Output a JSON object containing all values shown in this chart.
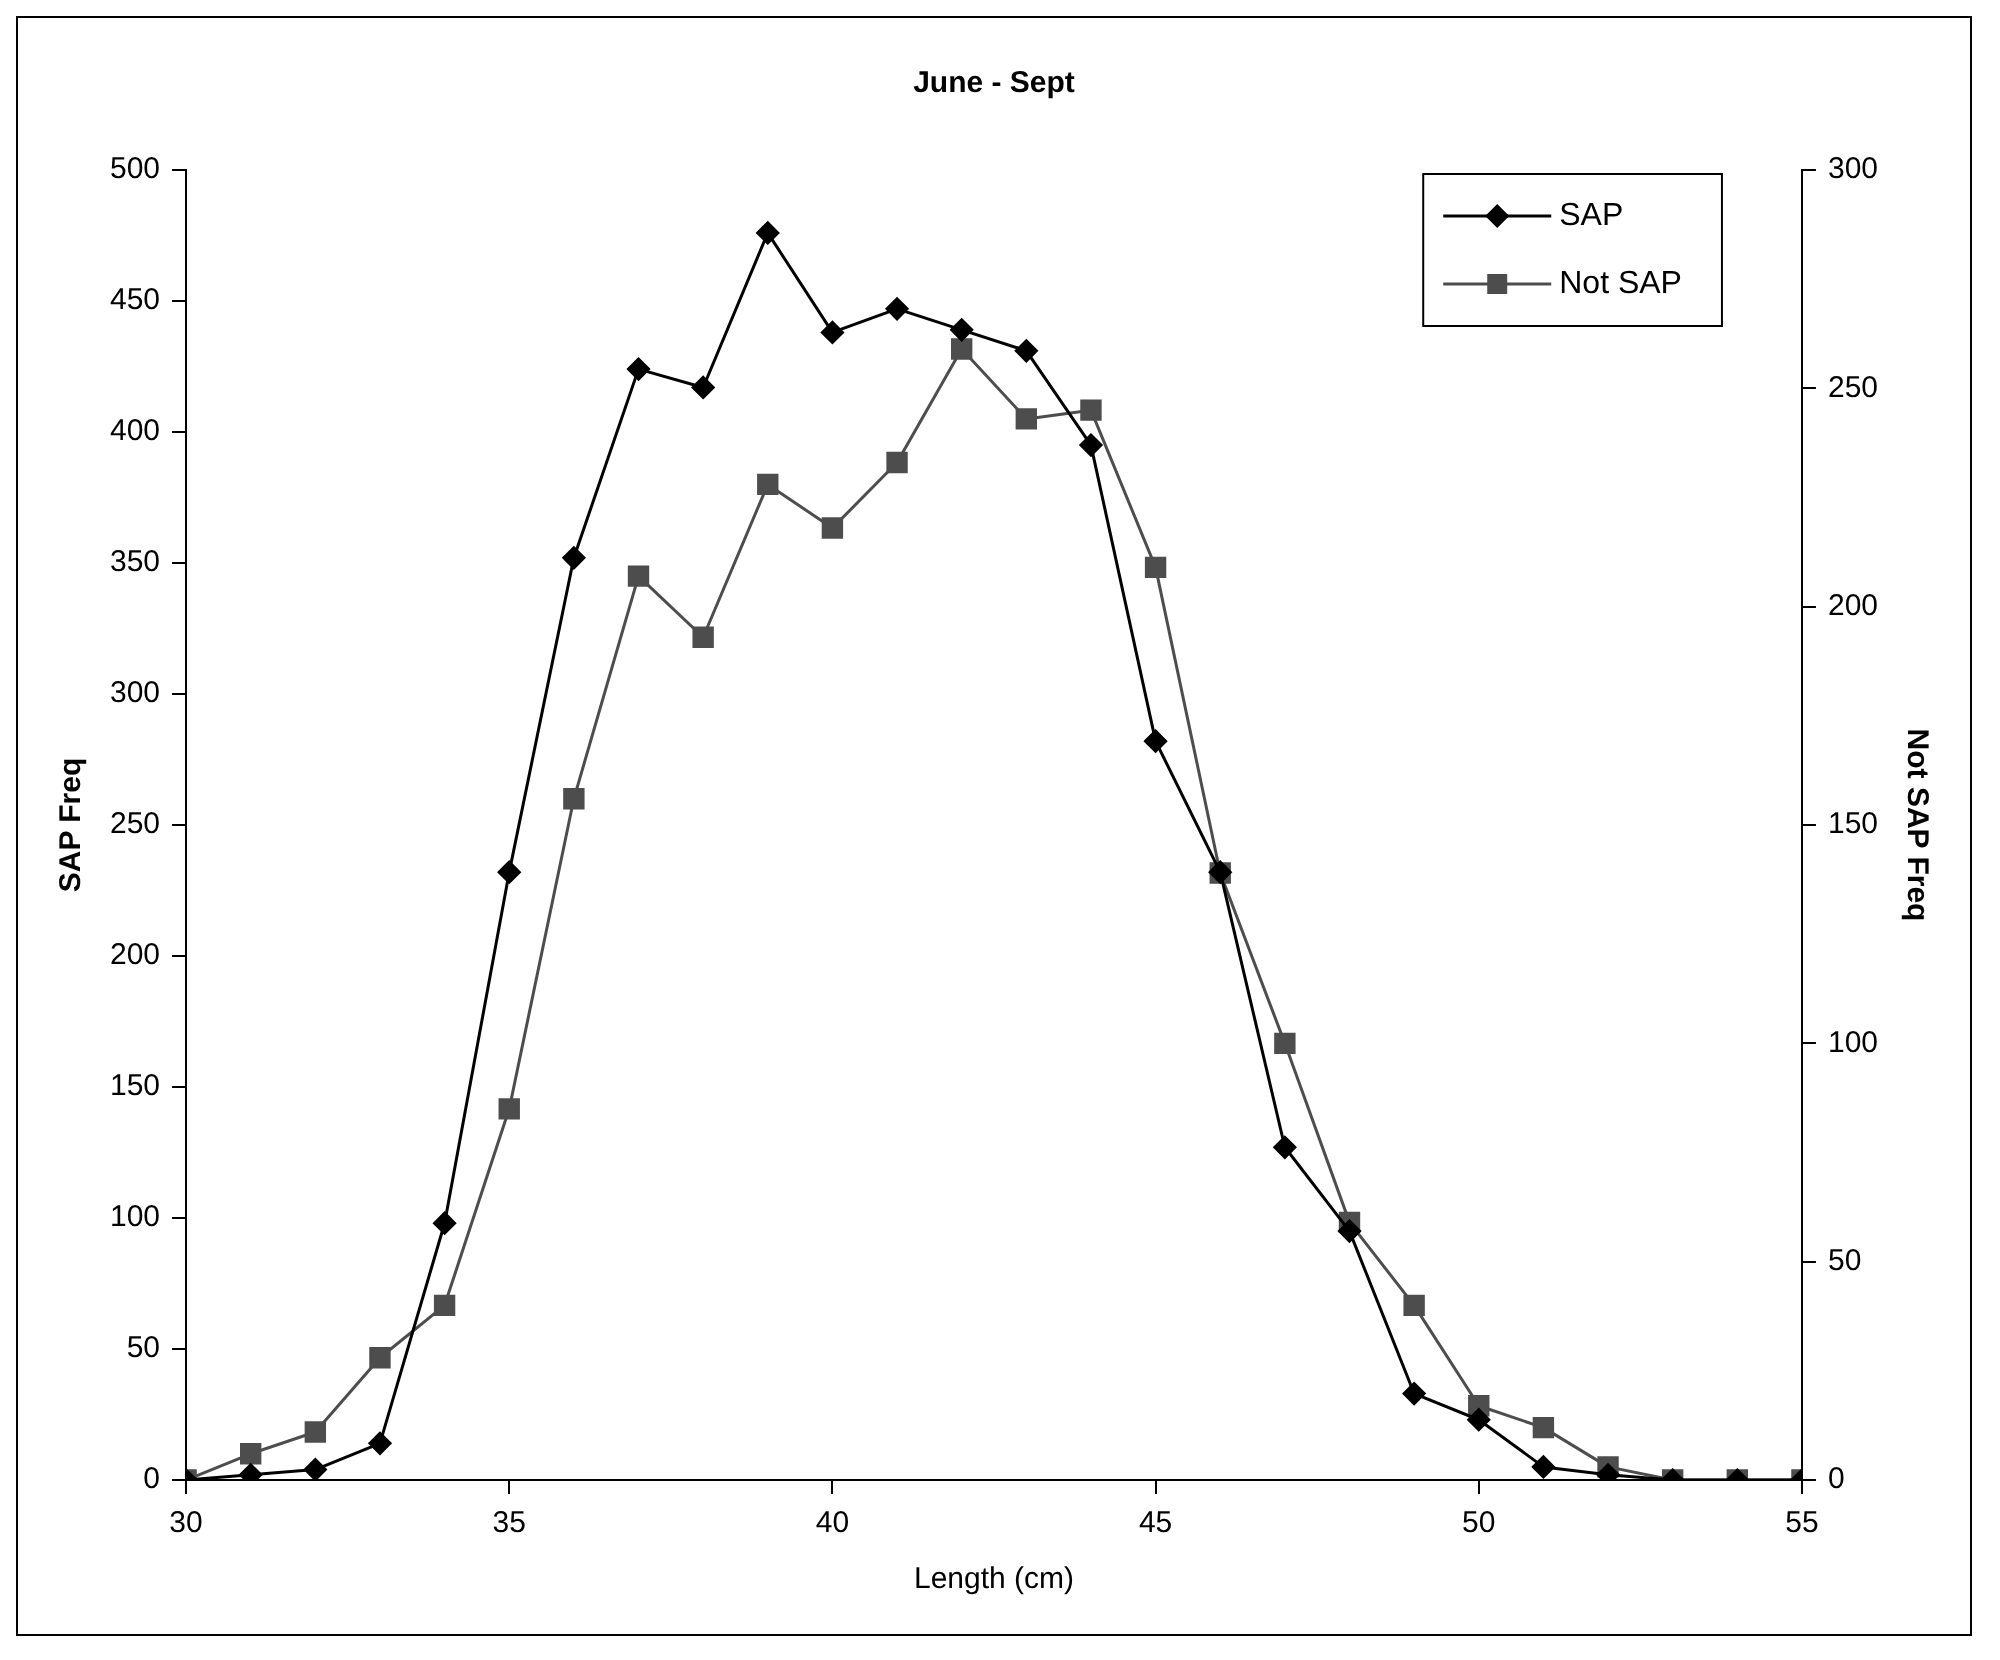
{
  "chart_data": {
    "type": "line",
    "title": "June - Sept",
    "xlabel": "Length (cm)",
    "ylabel": "SAP Freq",
    "y2label": "Not SAP Freq",
    "x": [
      30,
      31,
      32,
      33,
      34,
      35,
      36,
      37,
      38,
      39,
      40,
      41,
      42,
      43,
      44,
      45,
      46,
      47,
      48,
      49,
      50,
      51,
      52,
      53,
      54,
      55
    ],
    "series": [
      {
        "name": "SAP",
        "color": "#000000",
        "marker": "diamond",
        "values": [
          0,
          2,
          4,
          14,
          98,
          232,
          352,
          424,
          417,
          476,
          438,
          447,
          439,
          431,
          395,
          282,
          232,
          127,
          95,
          33,
          23,
          5,
          2,
          0,
          0,
          0
        ]
      },
      {
        "name": "Not SAP",
        "color": "#4d4d4d",
        "marker": "square",
        "axis": "y2",
        "values": [
          0,
          6,
          11,
          28,
          40,
          85,
          156,
          207,
          193,
          228,
          218,
          233,
          259,
          243,
          245,
          209,
          139,
          100,
          59,
          40,
          17,
          12,
          3,
          0,
          0,
          0
        ]
      }
    ],
    "xlim": [
      30,
      55
    ],
    "xticks": [
      30,
      35,
      40,
      45,
      50,
      55
    ],
    "ylim": [
      0,
      500
    ],
    "yticks": [
      0,
      50,
      100,
      150,
      200,
      250,
      300,
      350,
      400,
      450,
      500
    ],
    "y2lim": [
      0,
      300
    ],
    "y2ticks": [
      0,
      50,
      100,
      150,
      200,
      250,
      300
    ],
    "legend": "top right",
    "grid": false,
    "line_style": "solid"
  }
}
